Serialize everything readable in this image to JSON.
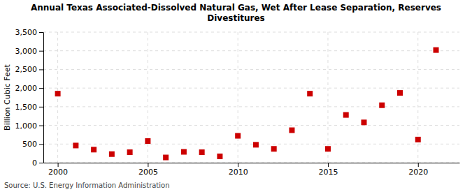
{
  "chart_data": {
    "type": "scatter",
    "title": "Annual Texas Associated-Dissolved Natural Gas, Wet After Lease Separation, Reserves\nDivestitures",
    "y_label": "Billion Cubic Feet",
    "source": "Source: U.S. Energy Information Administration",
    "x": [
      2000,
      2001,
      2002,
      2003,
      2004,
      2005,
      2006,
      2007,
      2008,
      2009,
      2010,
      2011,
      2012,
      2013,
      2014,
      2015,
      2016,
      2017,
      2018,
      2019,
      2020,
      2021
    ],
    "values": [
      1850,
      460,
      350,
      230,
      280,
      580,
      140,
      290,
      280,
      170,
      720,
      480,
      370,
      870,
      1850,
      370,
      1280,
      1080,
      1540,
      1870,
      620,
      3020
    ],
    "color": "#cc0000",
    "marker": "square",
    "xlim": [
      1999.2,
      2022.3
    ],
    "xticks": [
      2000,
      2005,
      2010,
      2015,
      2020
    ],
    "ylim": [
      0,
      3500
    ],
    "yticks": [
      0,
      500,
      {
        "value": 1000,
        "label": "1,000"
      },
      {
        "value": 1500,
        "label": "1,500"
      },
      {
        "value": 2000,
        "label": "2,000"
      },
      {
        "value": 2500,
        "label": "2,500"
      },
      {
        "value": 3000,
        "label": "3,000"
      },
      {
        "value": 3500,
        "label": "3,500"
      }
    ],
    "grid": true
  }
}
